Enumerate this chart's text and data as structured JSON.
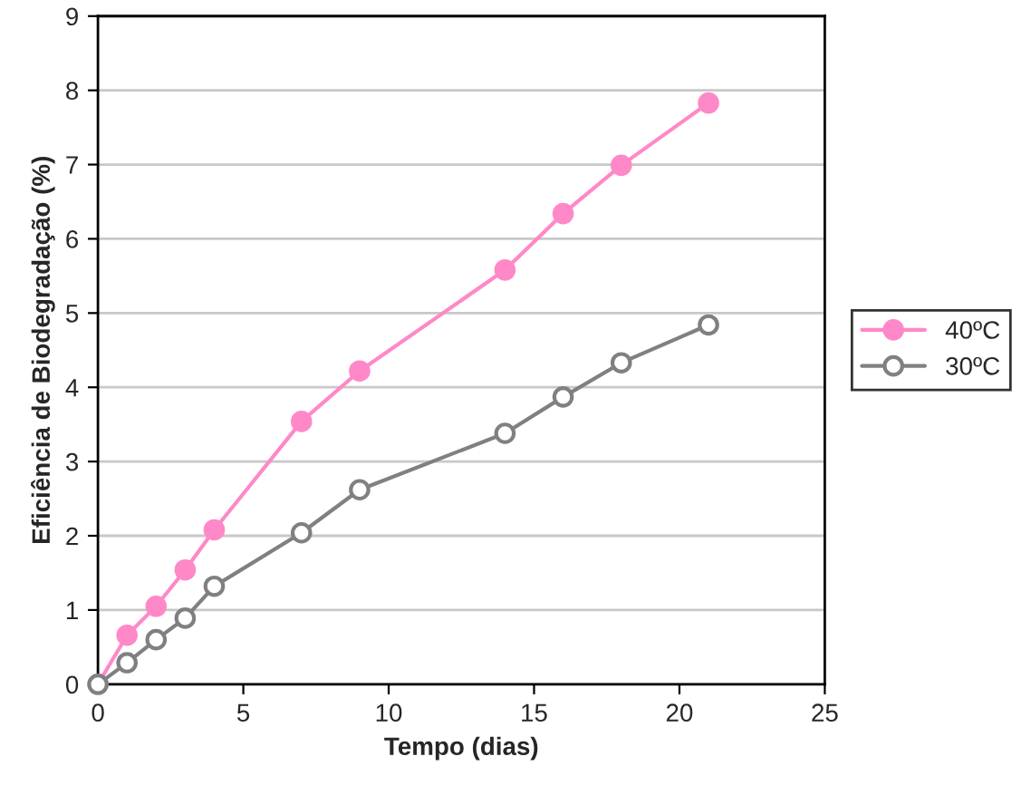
{
  "chart_data": {
    "type": "line",
    "xlabel": "Tempo (dias)",
    "ylabel": "Eficiência de Biodegradação (%)",
    "xlim": [
      0,
      25
    ],
    "xticks": [
      0,
      5,
      10,
      15,
      20,
      25
    ],
    "ylim": [
      0,
      9
    ],
    "yticks": [
      0,
      1,
      2,
      3,
      4,
      5,
      6,
      7,
      8,
      9
    ],
    "grid": "y",
    "legend": "right",
    "marker": "circle",
    "line_style": "solid",
    "series": [
      {
        "name": "40ºC",
        "color": "#ff88c8",
        "x": [
          0,
          1,
          2,
          3,
          4,
          7,
          9,
          14,
          16,
          18,
          21
        ],
        "values": [
          0,
          0.66,
          1.05,
          1.54,
          2.08,
          3.54,
          4.22,
          5.58,
          6.34,
          6.99,
          7.83
        ]
      },
      {
        "name": "30ºC",
        "color": "#808080",
        "x": [
          0,
          1,
          2,
          3,
          4,
          7,
          9,
          14,
          16,
          18,
          21
        ],
        "values": [
          0,
          0.29,
          0.6,
          0.89,
          1.32,
          2.04,
          2.62,
          3.38,
          3.87,
          4.33,
          4.84
        ]
      }
    ]
  }
}
